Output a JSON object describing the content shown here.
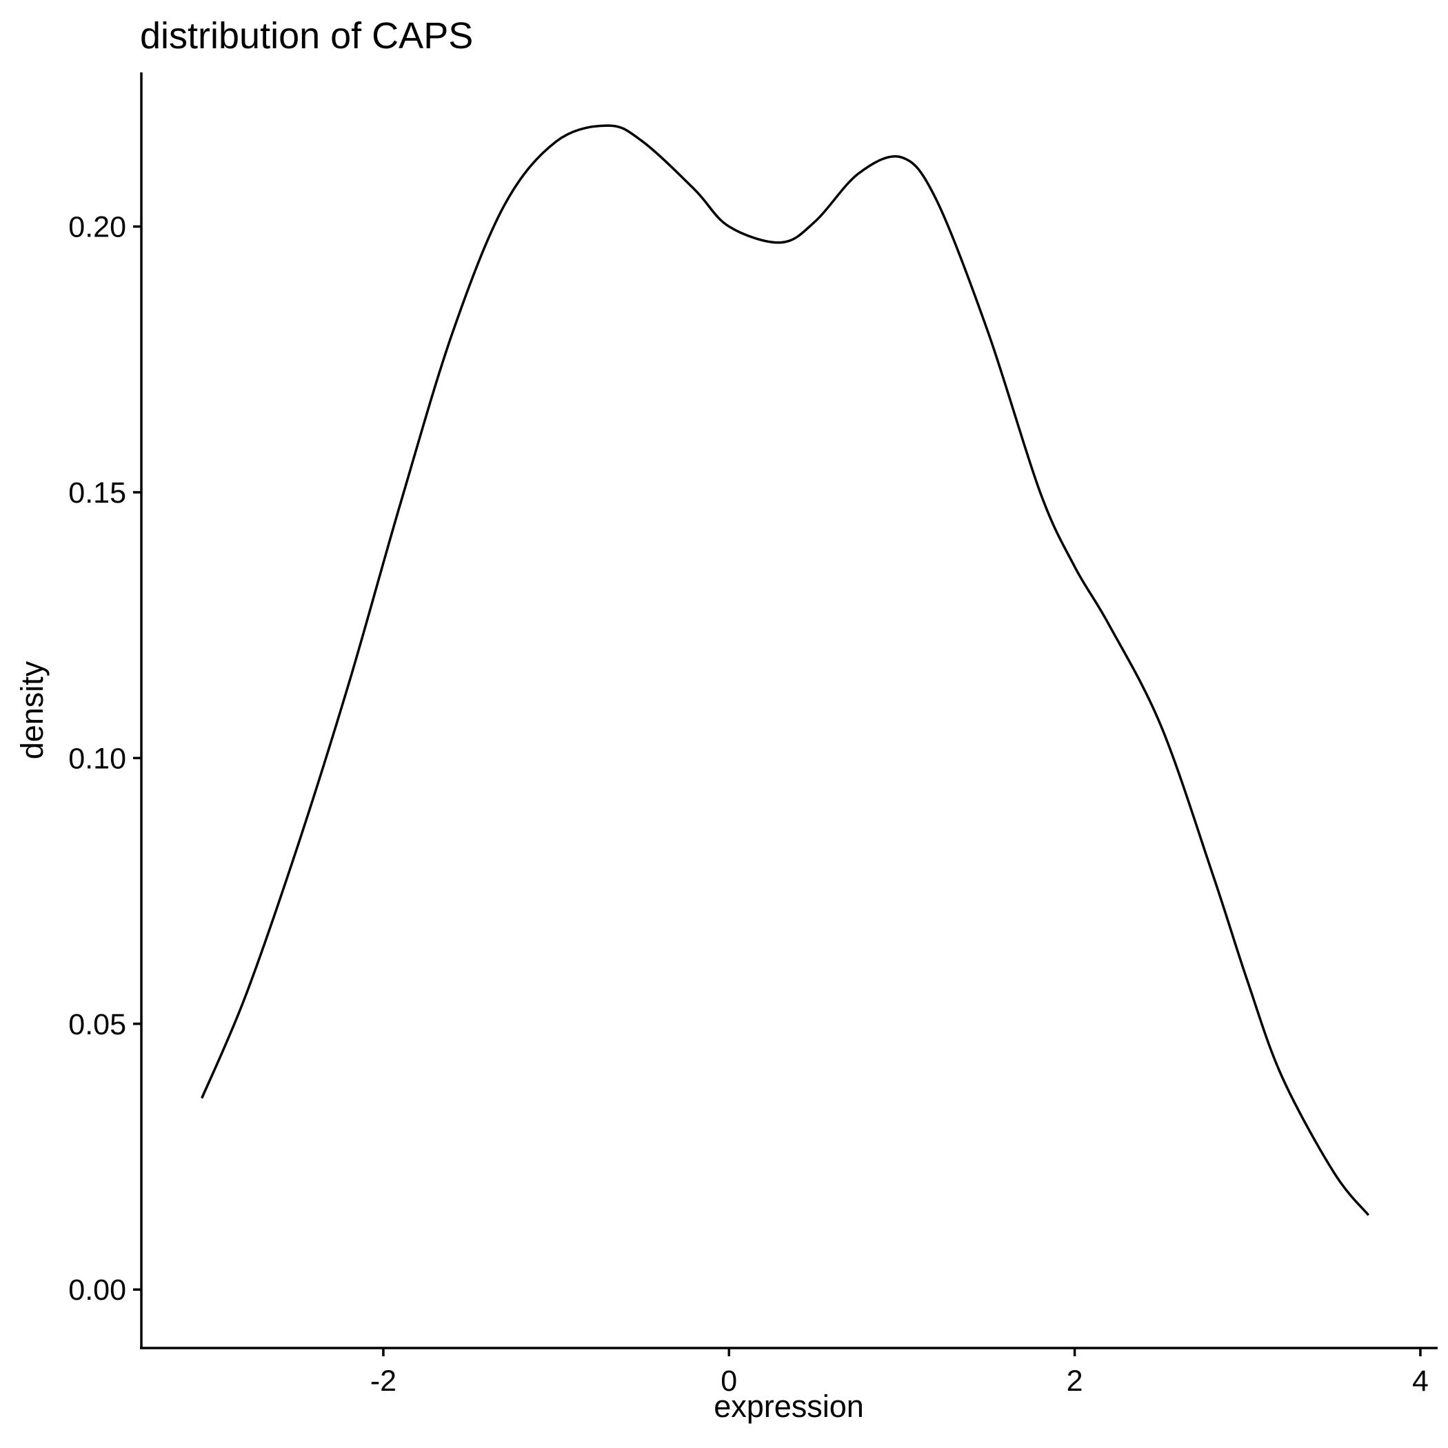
{
  "chart_data": {
    "type": "line",
    "title": "distribution of CAPS",
    "xlabel": "expression",
    "ylabel": "density",
    "xlim": [
      -3.4,
      4.1
    ],
    "ylim": [
      -0.011,
      0.229
    ],
    "x_ticks": [
      -2,
      0,
      2,
      4
    ],
    "x_tick_labels": [
      "-2",
      "0",
      "2",
      "4"
    ],
    "y_ticks": [
      0.0,
      0.05,
      0.1,
      0.15,
      0.2
    ],
    "y_tick_labels": [
      "0.00",
      "0.05",
      "0.10",
      "0.15",
      "0.20"
    ],
    "grid": false,
    "legend": "none",
    "line_color": "#000000",
    "series": [
      {
        "x": [
          -3.05,
          -2.8,
          -2.5,
          -2.2,
          -1.9,
          -1.6,
          -1.3,
          -1.0,
          -0.7,
          -0.5,
          -0.2,
          0.0,
          0.3,
          0.5,
          0.75,
          1.0,
          1.2,
          1.5,
          1.8,
          2.0,
          2.2,
          2.5,
          2.8,
          3.0,
          3.2,
          3.5,
          3.7
        ],
        "y": [
          0.036,
          0.055,
          0.083,
          0.114,
          0.148,
          0.18,
          0.204,
          0.216,
          0.219,
          0.216,
          0.207,
          0.2,
          0.197,
          0.201,
          0.21,
          0.213,
          0.205,
          0.18,
          0.15,
          0.136,
          0.125,
          0.106,
          0.078,
          0.058,
          0.04,
          0.022,
          0.014
        ]
      }
    ]
  }
}
